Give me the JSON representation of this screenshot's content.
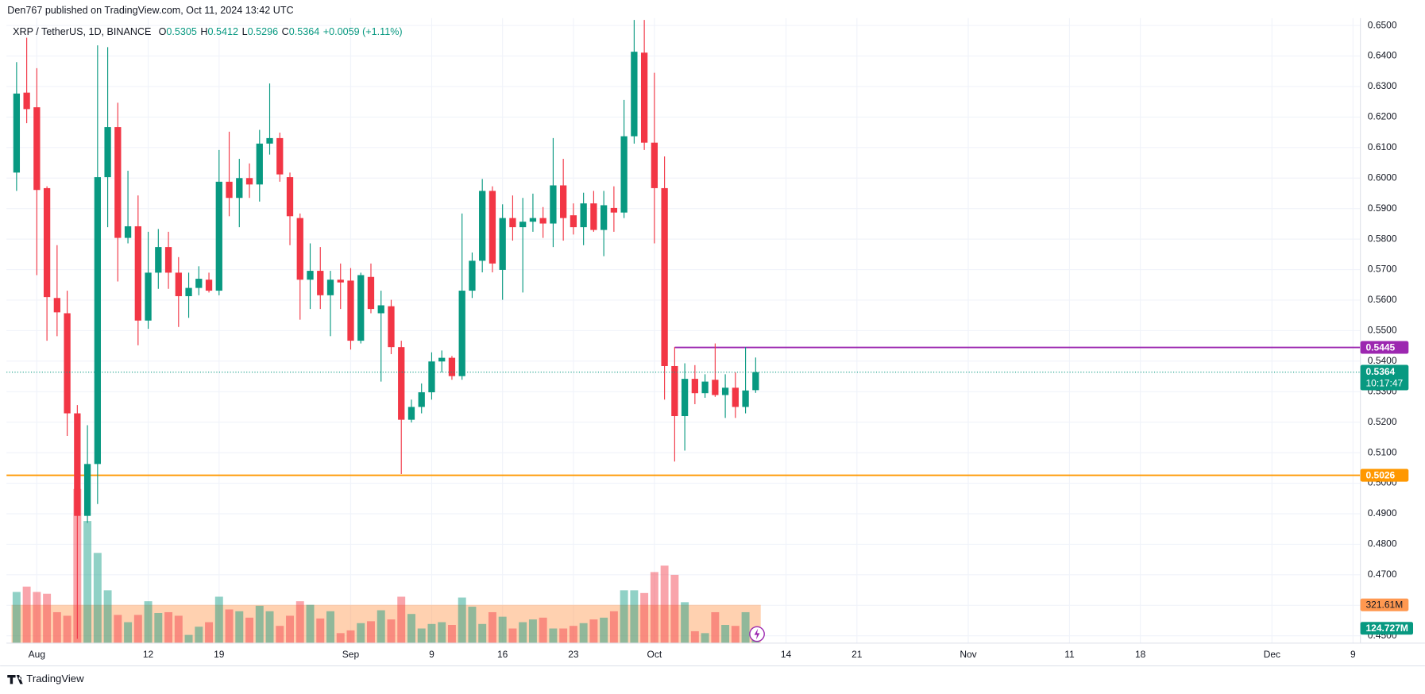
{
  "header": "Den767 published on TradingView.com, Oct 11, 2024 13:42 UTC",
  "footer": "TradingView",
  "chart_data": {
    "type": "candlestick",
    "title": "XRP / TetherUS, 1D, BINANCE",
    "legend": [
      {
        "label": "O",
        "value": "0.5305"
      },
      {
        "label": "H",
        "value": "0.5412"
      },
      {
        "label": "L",
        "value": "0.5296"
      },
      {
        "label": "C",
        "value": "0.5364"
      }
    ],
    "change": "+0.0059 (+1.11%)",
    "countdown": "10:17:47",
    "up_color": "#089981",
    "down_color": "#f23645",
    "x": [
      "2024-07-30",
      "2024-07-31",
      "2024-08-01",
      "2024-08-02",
      "2024-08-03",
      "2024-08-04",
      "2024-08-05",
      "2024-08-06",
      "2024-08-07",
      "2024-08-08",
      "2024-08-09",
      "2024-08-10",
      "2024-08-11",
      "2024-08-12",
      "2024-08-13",
      "2024-08-14",
      "2024-08-15",
      "2024-08-16",
      "2024-08-17",
      "2024-08-18",
      "2024-08-19",
      "2024-08-20",
      "2024-08-21",
      "2024-08-22",
      "2024-08-23",
      "2024-08-24",
      "2024-08-25",
      "2024-08-26",
      "2024-08-27",
      "2024-08-28",
      "2024-08-29",
      "2024-08-30",
      "2024-08-31",
      "2024-09-01",
      "2024-09-02",
      "2024-09-03",
      "2024-09-04",
      "2024-09-05",
      "2024-09-06",
      "2024-09-07",
      "2024-09-08",
      "2024-09-09",
      "2024-09-10",
      "2024-09-11",
      "2024-09-12",
      "2024-09-13",
      "2024-09-14",
      "2024-09-15",
      "2024-09-16",
      "2024-09-17",
      "2024-09-18",
      "2024-09-19",
      "2024-09-20",
      "2024-09-21",
      "2024-09-22",
      "2024-09-23",
      "2024-09-24",
      "2024-09-25",
      "2024-09-26",
      "2024-09-27",
      "2024-09-28",
      "2024-09-29",
      "2024-09-30",
      "2024-10-01",
      "2024-10-02",
      "2024-10-03",
      "2024-10-04",
      "2024-10-05",
      "2024-10-06",
      "2024-10-07",
      "2024-10-08",
      "2024-10-09",
      "2024-10-10",
      "2024-10-11"
    ],
    "open": [
      0.6018,
      0.628,
      0.6232,
      0.5967,
      0.5607,
      0.5557,
      0.5229,
      0.4893,
      0.5063,
      0.6003,
      0.6167,
      0.5804,
      0.5842,
      0.5533,
      0.569,
      0.5774,
      0.569,
      0.5613,
      0.564,
      0.5667,
      0.5631,
      0.5988,
      0.5935,
      0.6,
      0.5979,
      0.6113,
      0.6131,
      0.6003,
      0.5869,
      0.5667,
      0.5696,
      0.5616,
      0.5667,
      0.5664,
      0.5467,
      0.5676,
      0.5557,
      0.558,
      0.5446,
      0.5208,
      0.525,
      0.5298,
      0.5399,
      0.5411,
      0.5351,
      0.5631,
      0.5729,
      0.5958,
      0.5699,
      0.5869,
      0.5839,
      0.5857,
      0.5869,
      0.5851,
      0.5976,
      0.5878,
      0.5839,
      0.5917,
      0.583,
      0.5902,
      0.5887,
      0.6137,
      0.6411,
      0.6116,
      0.5967,
      0.5384,
      0.522,
      0.5342,
      0.5295,
      0.5339,
      0.5289,
      0.5313,
      0.525,
      0.5305
    ],
    "high": [
      0.638,
      0.646,
      0.636,
      0.5973,
      0.578,
      0.5631,
      0.5256,
      0.519,
      0.6435,
      0.6429,
      0.6247,
      0.6024,
      0.5943,
      0.5824,
      0.5833,
      0.5824,
      0.5741,
      0.569,
      0.5711,
      0.569,
      0.6092,
      0.6152,
      0.6063,
      0.6048,
      0.6158,
      0.631,
      0.6149,
      0.6018,
      0.5884,
      0.5786,
      0.5774,
      0.5696,
      0.572,
      0.5705,
      0.569,
      0.572,
      0.5631,
      0.5601,
      0.5467,
      0.5274,
      0.5327,
      0.5429,
      0.5435,
      0.5417,
      0.5884,
      0.5756,
      0.5997,
      0.5973,
      0.5914,
      0.5943,
      0.5935,
      0.5949,
      0.5905,
      0.6131,
      0.6063,
      0.5917,
      0.5952,
      0.5958,
      0.5958,
      0.5973,
      0.6256,
      0.6518,
      0.6518,
      0.6345,
      0.6071,
      0.5446,
      0.5393,
      0.5387,
      0.5357,
      0.5458,
      0.5357,
      0.5363,
      0.5446,
      0.5412
    ],
    "low": [
      0.5958,
      0.618,
      0.5682,
      0.5467,
      0.5482,
      0.5155,
      0.449,
      0.487,
      0.4932,
      0.5839,
      0.5661,
      0.5786,
      0.5452,
      0.5506,
      0.5637,
      0.5637,
      0.5512,
      0.5542,
      0.5616,
      0.5625,
      0.5616,
      0.5875,
      0.5839,
      0.5935,
      0.5923,
      0.6077,
      0.5988,
      0.578,
      0.5536,
      0.5571,
      0.5571,
      0.5482,
      0.5571,
      0.5438,
      0.5458,
      0.5557,
      0.5333,
      0.5423,
      0.503,
      0.5199,
      0.5229,
      0.5274,
      0.5363,
      0.5339,
      0.5339,
      0.5607,
      0.5691,
      0.5691,
      0.5601,
      0.5795,
      0.5625,
      0.5824,
      0.5804,
      0.5774,
      0.5795,
      0.5815,
      0.578,
      0.5824,
      0.5744,
      0.5824,
      0.5869,
      0.6113,
      0.6092,
      0.5786,
      0.5274,
      0.5071,
      0.5107,
      0.5259,
      0.528,
      0.5283,
      0.5214,
      0.5214,
      0.5229,
      0.5296
    ],
    "close": [
      0.6277,
      0.6226,
      0.5961,
      0.561,
      0.556,
      0.5229,
      0.4893,
      0.5063,
      0.6003,
      0.6167,
      0.5804,
      0.5842,
      0.5533,
      0.569,
      0.5774,
      0.569,
      0.5613,
      0.564,
      0.567,
      0.5631,
      0.5988,
      0.5935,
      0.6,
      0.5979,
      0.6113,
      0.6131,
      0.6012,
      0.5875,
      0.5667,
      0.5696,
      0.5616,
      0.5667,
      0.5658,
      0.5467,
      0.5682,
      0.5571,
      0.5583,
      0.5446,
      0.5208,
      0.525,
      0.5298,
      0.5399,
      0.5411,
      0.5351,
      0.5631,
      0.5729,
      0.5958,
      0.572,
      0.5869,
      0.5839,
      0.5857,
      0.5869,
      0.5851,
      0.5976,
      0.5869,
      0.5839,
      0.5917,
      0.583,
      0.5911,
      0.5887,
      0.6137,
      0.6414,
      0.6116,
      0.5967,
      0.5384,
      0.522,
      0.5342,
      0.5295,
      0.5333,
      0.5289,
      0.5313,
      0.525,
      0.5304,
      0.5364
    ],
    "volume": [
      430,
      475,
      430,
      415,
      260,
      230,
      1295,
      1026,
      758,
      444,
      237,
      176,
      237,
      352,
      253,
      260,
      230,
      69,
      138,
      176,
      390,
      283,
      268,
      214,
      314,
      268,
      145,
      230,
      352,
      322,
      207,
      268,
      84,
      107,
      168,
      184,
      276,
      199,
      390,
      245,
      123,
      161,
      176,
      153,
      383,
      306,
      161,
      260,
      222,
      123,
      176,
      199,
      214,
      123,
      123,
      145,
      168,
      199,
      214,
      268,
      444,
      444,
      421,
      597,
      651,
      574,
      344,
      100,
      84,
      260,
      153,
      145,
      260,
      124.727
    ],
    "volume_last_label": "124.727M",
    "volume_ma": {
      "value": 321.61,
      "label": "321.61M",
      "color": "#ff9850"
    },
    "volume_ylim": [
      0,
      5250
    ],
    "ylim": [
      0.4476,
      0.6524
    ],
    "yticks": [
      {
        "value": 0.45,
        "label": "0.4500"
      },
      {
        "value": 0.46,
        "label": "0.4600"
      },
      {
        "value": 0.47,
        "label": "0.4700"
      },
      {
        "value": 0.48,
        "label": "0.4800"
      },
      {
        "value": 0.49,
        "label": "0.4900"
      },
      {
        "value": 0.5,
        "label": "0.5000"
      },
      {
        "value": 0.51,
        "label": "0.5100"
      },
      {
        "value": 0.52,
        "label": "0.5200"
      },
      {
        "value": 0.53,
        "label": "0.5300"
      },
      {
        "value": 0.54,
        "label": "0.5400"
      },
      {
        "value": 0.55,
        "label": "0.5500"
      },
      {
        "value": 0.56,
        "label": "0.5600"
      },
      {
        "value": 0.57,
        "label": "0.5700"
      },
      {
        "value": 0.58,
        "label": "0.5800"
      },
      {
        "value": 0.59,
        "label": "0.5900"
      },
      {
        "value": 0.6,
        "label": "0.6000"
      },
      {
        "value": 0.61,
        "label": "0.6100"
      },
      {
        "value": 0.62,
        "label": "0.6200"
      },
      {
        "value": 0.63,
        "label": "0.6300"
      },
      {
        "value": 0.64,
        "label": "0.6400"
      },
      {
        "value": 0.65,
        "label": "0.6500"
      }
    ],
    "xlim": [
      "2024-07-29",
      "2024-12-10"
    ],
    "xticks": [
      {
        "value": "2024-08-01",
        "label": "Aug"
      },
      {
        "value": "2024-08-12",
        "label": "12"
      },
      {
        "value": "2024-08-19",
        "label": "19"
      },
      {
        "value": "2024-09-01",
        "label": "Sep"
      },
      {
        "value": "2024-09-09",
        "label": "9"
      },
      {
        "value": "2024-09-16",
        "label": "16"
      },
      {
        "value": "2024-09-23",
        "label": "23"
      },
      {
        "value": "2024-10-01",
        "label": "Oct"
      },
      {
        "value": "2024-10-14",
        "label": "14"
      },
      {
        "value": "2024-10-21",
        "label": "21"
      },
      {
        "value": "2024-11-01",
        "label": "Nov"
      },
      {
        "value": "2024-11-11",
        "label": "11"
      },
      {
        "value": "2024-11-18",
        "label": "18"
      },
      {
        "value": "2024-12-01",
        "label": "Dec"
      },
      {
        "value": "2024-12-09",
        "label": "9"
      }
    ],
    "grid": true,
    "price_lines": [
      {
        "value": 0.5445,
        "color": "#9c27b0",
        "start": "2024-10-03"
      },
      {
        "value": 0.5026,
        "color": "#ff9800"
      }
    ]
  }
}
